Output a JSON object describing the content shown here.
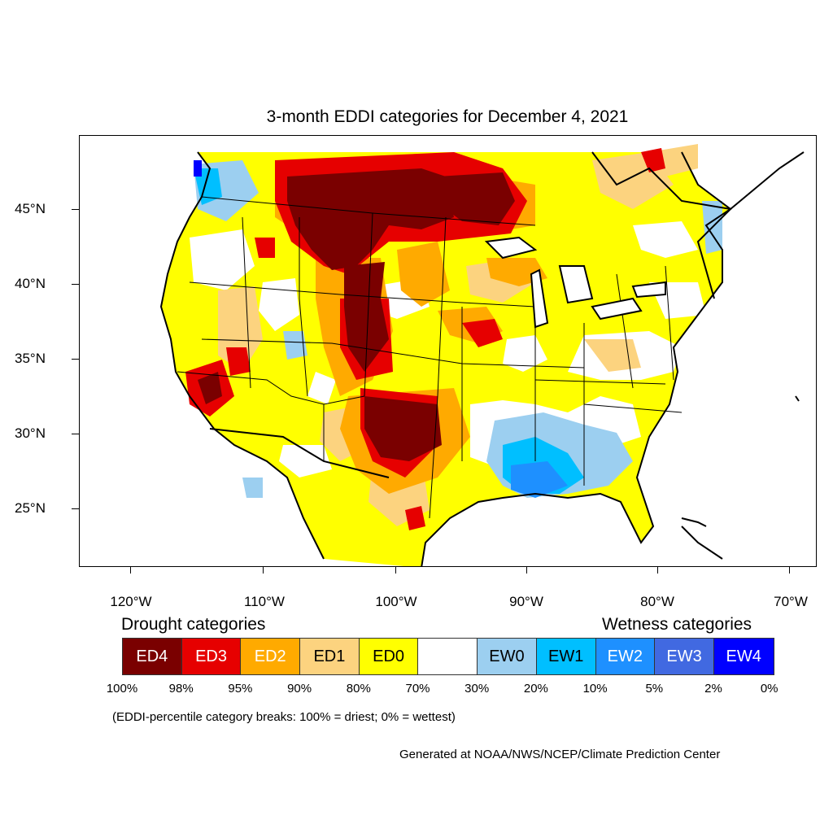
{
  "title": "3-month EDDI categories for December 4, 2021",
  "latitude_labels": [
    "45°N",
    "40°N",
    "35°N",
    "30°N",
    "25°N"
  ],
  "longitude_labels": [
    "120°W",
    "110°W",
    "100°W",
    "90°W",
    "80°W",
    "70°W"
  ],
  "legend": {
    "drought_heading": "Drought categories",
    "wetness_heading": "Wetness categories",
    "categories": [
      {
        "label": "ED4",
        "color": "#7a0000",
        "text_color": "#ffffff"
      },
      {
        "label": "ED3",
        "color": "#e60000",
        "text_color": "#ffffff"
      },
      {
        "label": "ED2",
        "color": "#ffaa00",
        "text_color": "#ffffff"
      },
      {
        "label": "ED1",
        "color": "#fcd37f",
        "text_color": "#000000"
      },
      {
        "label": "ED0",
        "color": "#ffff00",
        "text_color": "#000000"
      },
      {
        "label": "",
        "color": "#ffffff",
        "text_color": "#000000"
      },
      {
        "label": "EW0",
        "color": "#9ccff0",
        "text_color": "#000000"
      },
      {
        "label": "EW1",
        "color": "#00bfff",
        "text_color": "#000000"
      },
      {
        "label": "EW2",
        "color": "#1e90ff",
        "text_color": "#ffffff"
      },
      {
        "label": "EW3",
        "color": "#4169e1",
        "text_color": "#ffffff"
      },
      {
        "label": "EW4",
        "color": "#0000ff",
        "text_color": "#ffffff"
      }
    ],
    "percentiles": [
      "100%",
      "98%",
      "95%",
      "90%",
      "80%",
      "70%",
      "30%",
      "20%",
      "10%",
      "5%",
      "2%",
      "0%"
    ]
  },
  "note": "(EDDI-percentile category breaks: 100% = driest; 0% = wettest)",
  "credit": "Generated at NOAA/NWS/NCEP/Climate Prediction Center"
}
